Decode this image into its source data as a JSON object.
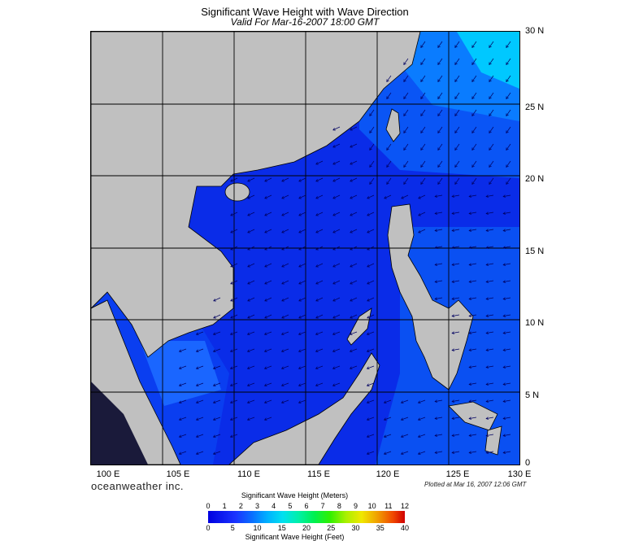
{
  "title": "Significant Wave Height with Wave Direction",
  "subtitle": "Valid For Mar-16-2007 18:00 GMT",
  "lat_labels": [
    "30 N",
    "25 N",
    "20 N",
    "15 N",
    "10 N",
    "5 N",
    "0"
  ],
  "lon_labels": [
    "100 E",
    "105 E",
    "110 E",
    "115 E",
    "120 E",
    "125 E",
    "130 E"
  ],
  "branding": "oceanweather inc.",
  "plotted_note": "Plotted at Mar 16, 2007 12:06 GMT",
  "legend": {
    "meters_title": "Significant Wave Height (Meters)",
    "feet_title": "Significant Wave Height (Feet)",
    "meters_ticks": [
      "0",
      "1",
      "2",
      "3",
      "4",
      "5",
      "6",
      "7",
      "8",
      "9",
      "10",
      "11",
      "12"
    ],
    "feet_ticks": [
      "0",
      "5",
      "10",
      "15",
      "20",
      "25",
      "30",
      "35",
      "40"
    ]
  },
  "colors": {
    "land": "#c0c0c0",
    "sea_low": "#0a2ce8",
    "sea_mid": "#1a66ff",
    "sea_high": "#00d8ff",
    "arrow": "#000060"
  }
}
